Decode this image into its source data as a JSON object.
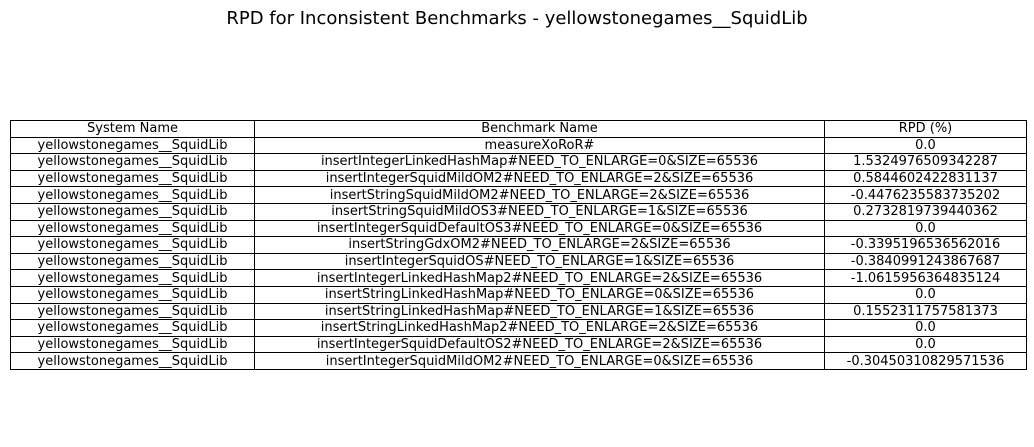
{
  "chart_data": {
    "type": "table",
    "title": "RPD for Inconsistent Benchmarks - yellowstonegames__SquidLib",
    "columns": [
      "System Name",
      "Benchmark Name",
      "RPD (%)"
    ],
    "rows": [
      [
        "yellowstonegames__SquidLib",
        "measureXoRoR#",
        "0.0"
      ],
      [
        "yellowstonegames__SquidLib",
        "insertIntegerLinkedHashMap#NEED_TO_ENLARGE=0&SIZE=65536",
        "1.5324976509342287"
      ],
      [
        "yellowstonegames__SquidLib",
        "insertIntegerSquidMildOM2#NEED_TO_ENLARGE=2&SIZE=65536",
        "0.5844602422831137"
      ],
      [
        "yellowstonegames__SquidLib",
        "insertStringSquidMildOM2#NEED_TO_ENLARGE=2&SIZE=65536",
        "-0.4476235583735202"
      ],
      [
        "yellowstonegames__SquidLib",
        "insertStringSquidMildOS3#NEED_TO_ENLARGE=1&SIZE=65536",
        "0.2732819739440362"
      ],
      [
        "yellowstonegames__SquidLib",
        "insertIntegerSquidDefaultOS3#NEED_TO_ENLARGE=0&SIZE=65536",
        "0.0"
      ],
      [
        "yellowstonegames__SquidLib",
        "insertStringGdxOM2#NEED_TO_ENLARGE=2&SIZE=65536",
        "-0.3395196536562016"
      ],
      [
        "yellowstonegames__SquidLib",
        "insertIntegerSquidOS#NEED_TO_ENLARGE=1&SIZE=65536",
        "-0.3840991243867687"
      ],
      [
        "yellowstonegames__SquidLib",
        "insertIntegerLinkedHashMap2#NEED_TO_ENLARGE=2&SIZE=65536",
        "-1.0615956364835124"
      ],
      [
        "yellowstonegames__SquidLib",
        "insertStringLinkedHashMap#NEED_TO_ENLARGE=0&SIZE=65536",
        "0.0"
      ],
      [
        "yellowstonegames__SquidLib",
        "insertStringLinkedHashMap#NEED_TO_ENLARGE=1&SIZE=65536",
        "0.1552311757581373"
      ],
      [
        "yellowstonegames__SquidLib",
        "insertStringLinkedHashMap2#NEED_TO_ENLARGE=2&SIZE=65536",
        "0.0"
      ],
      [
        "yellowstonegames__SquidLib",
        "insertIntegerSquidDefaultOS2#NEED_TO_ENLARGE=2&SIZE=65536",
        "0.0"
      ],
      [
        "yellowstonegames__SquidLib",
        "insertIntegerSquidMildOM2#NEED_TO_ENLARGE=0&SIZE=65536",
        "-0.30450310829571536"
      ]
    ]
  }
}
